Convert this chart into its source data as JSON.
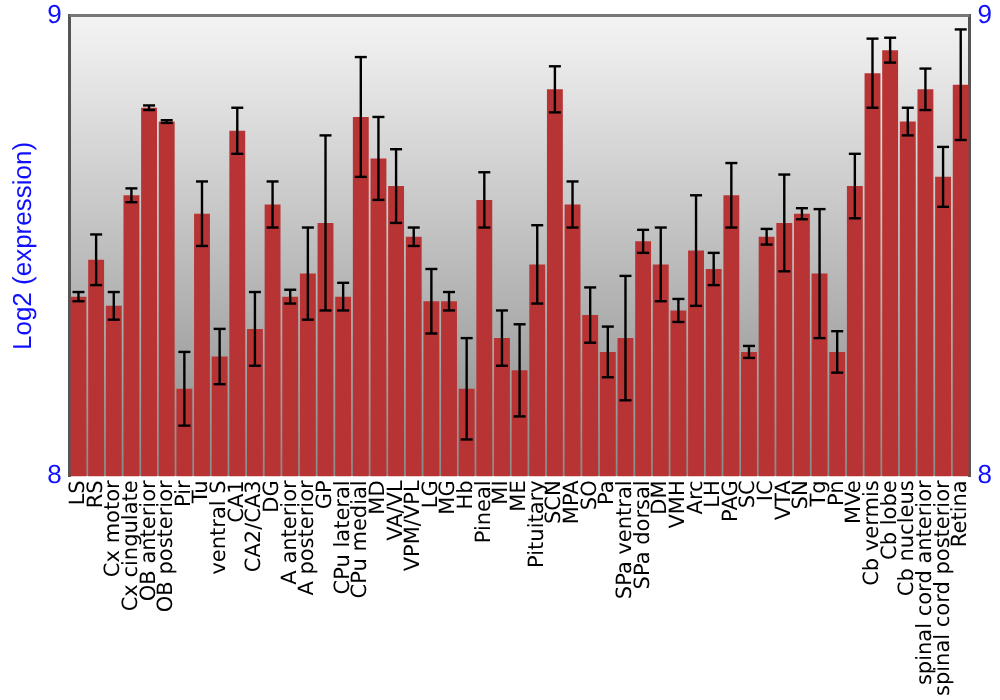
{
  "chart_data": {
    "type": "bar",
    "ylabel": "Log2 (expression)",
    "categories": [
      "LS",
      "RS",
      "Cx motor",
      "Cx cingulate",
      "OB anterior",
      "OB posterior",
      "Pir",
      "Tu",
      "ventral S",
      "CA1",
      "CA2/CA3",
      "DG",
      "A anterior",
      "A posterior",
      "GP",
      "CPu lateral",
      "CPu medial",
      "MD",
      "VA/VL",
      "VPM/VPL",
      "LG",
      "MG",
      "Hb",
      "Pineal",
      "MI",
      "ME",
      "Pituitary",
      "SCN",
      "MPA",
      "SO",
      "Pa",
      "SPa ventral",
      "SPa dorsal",
      "DM",
      "VMH",
      "Arc",
      "LH",
      "PAG",
      "SC",
      "IC",
      "VTA",
      "SN",
      "Tg",
      "Pn",
      "MVe",
      "Cb vermis",
      "Cb lobe",
      "Cb nucleus",
      "spinal cord anterior",
      "spinal cord posterior",
      "Retina"
    ],
    "values": [
      8.39,
      8.47,
      8.37,
      8.61,
      8.8,
      8.77,
      8.19,
      8.57,
      8.26,
      8.75,
      8.32,
      8.59,
      8.39,
      8.44,
      8.55,
      8.39,
      8.78,
      8.69,
      8.63,
      8.52,
      8.38,
      8.38,
      8.19,
      8.6,
      8.3,
      8.23,
      8.46,
      8.84,
      8.59,
      8.35,
      8.27,
      8.3,
      8.51,
      8.46,
      8.36,
      8.49,
      8.45,
      8.61,
      8.27,
      8.52,
      8.55,
      8.57,
      8.44,
      8.27,
      8.63,
      8.875,
      8.925,
      8.77,
      8.84,
      8.65,
      8.85
    ],
    "errors": [
      0.01,
      0.055,
      0.03,
      0.015,
      0.005,
      0.003,
      0.08,
      0.07,
      0.06,
      0.05,
      0.08,
      0.05,
      0.015,
      0.1,
      0.19,
      0.03,
      0.13,
      0.09,
      0.08,
      0.02,
      0.07,
      0.02,
      0.11,
      0.06,
      0.06,
      0.1,
      0.085,
      0.05,
      0.05,
      0.06,
      0.055,
      0.135,
      0.025,
      0.08,
      0.025,
      0.12,
      0.035,
      0.07,
      0.013,
      0.017,
      0.105,
      0.012,
      0.14,
      0.045,
      0.07,
      0.075,
      0.027,
      0.03,
      0.045,
      0.065,
      0.12
    ],
    "color": "#b83434",
    "ylim": [
      8,
      9
    ],
    "yticks": [
      8,
      9
    ],
    "y2lim": [
      8,
      9
    ],
    "y2ticks": [
      8,
      9
    ],
    "grid": false,
    "legend": false
  }
}
